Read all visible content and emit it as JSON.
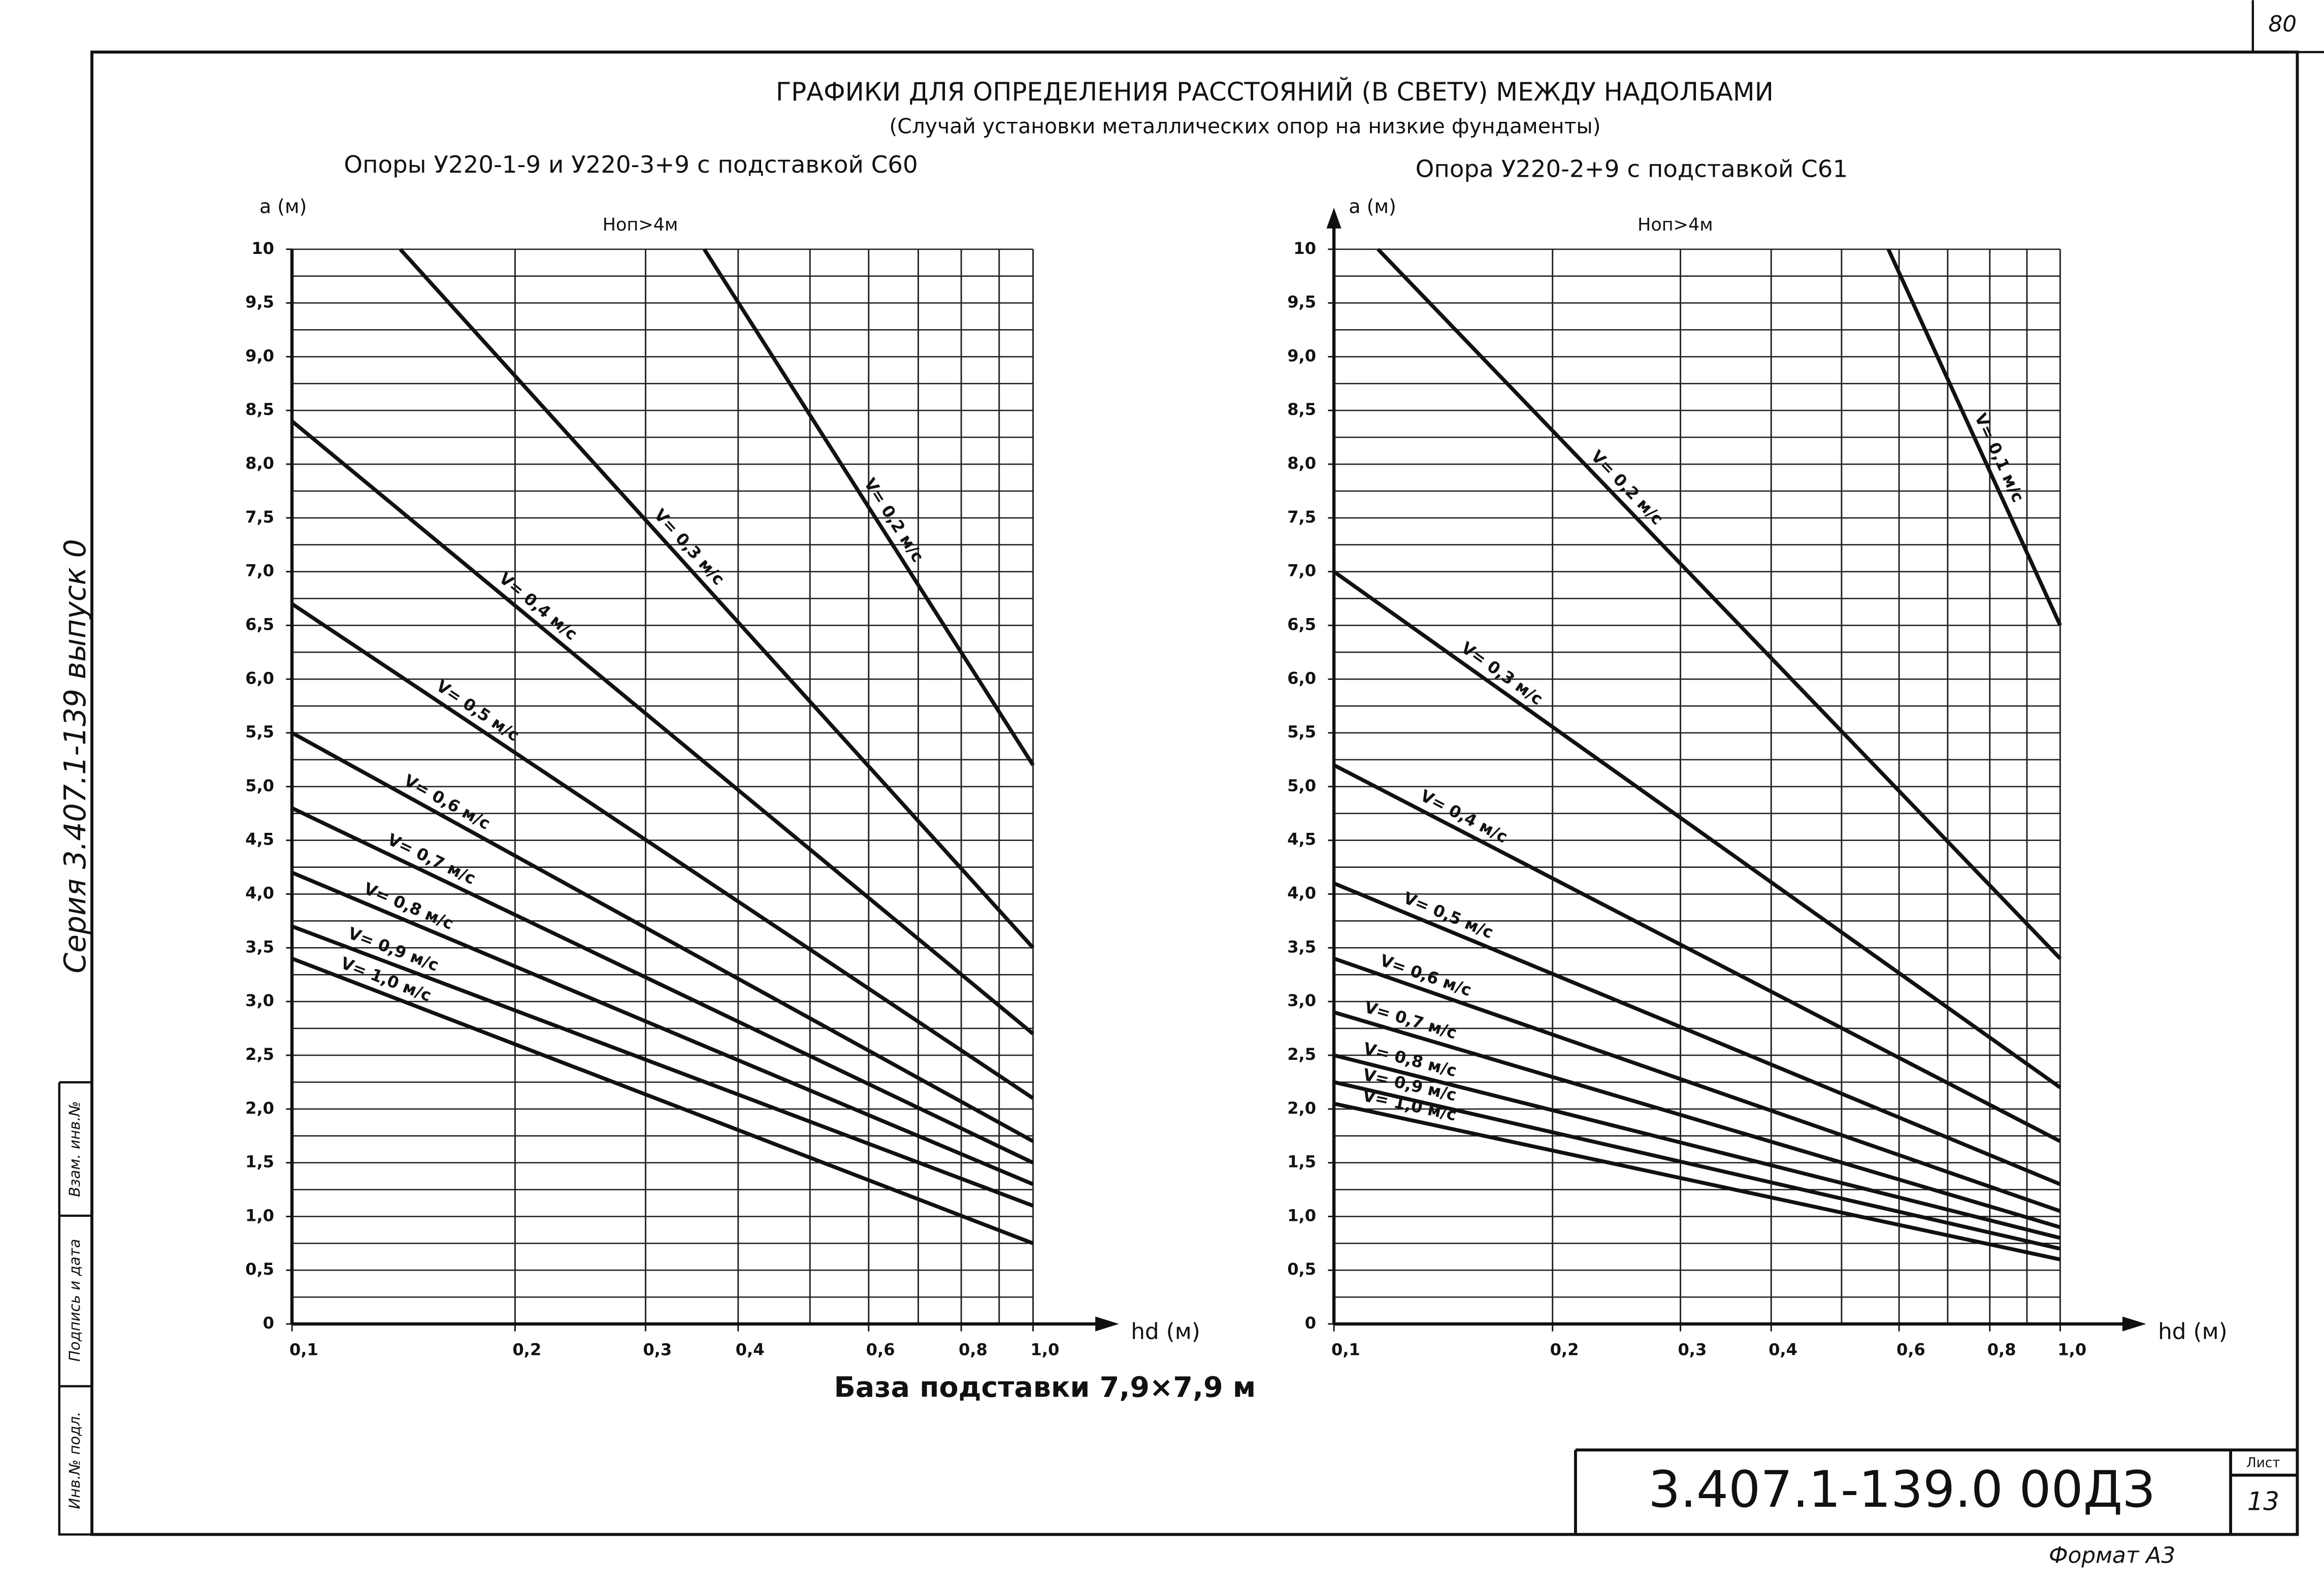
{
  "header": {
    "title": "ГРАФИКИ ДЛЯ ОПРЕДЕЛЕНИЯ РАССТОЯНИЙ (В СВЕТУ) МЕЖДУ НАДОЛБАМИ",
    "subtitle": "(Случай установки металлических опор на низкие фундаменты)"
  },
  "chart_data": [
    {
      "type": "line",
      "title": "Опоры У220-1-9 и У220-3+9 с подставкой С60",
      "annotation": "Hоп>4м",
      "x_label": "hd (м)",
      "y_label": "a (м)",
      "xscale": "log",
      "grid": true,
      "xlim": [
        0.1,
        1.0
      ],
      "ylim": [
        0,
        10
      ],
      "xticks": [
        {
          "value": 0.1,
          "label": "0,1"
        },
        {
          "value": 0.2,
          "label": "0,2"
        },
        {
          "value": 0.3,
          "label": "0,3"
        },
        {
          "value": 0.4,
          "label": "0,4"
        },
        {
          "value": 0.6,
          "label": "0,6"
        },
        {
          "value": 0.8,
          "label": "0,8"
        },
        {
          "value": 1.0,
          "label": "1,0"
        }
      ],
      "yticks": [
        0,
        {
          "value": 0.5,
          "label": "0,5"
        },
        {
          "value": 1,
          "label": "1,0"
        },
        {
          "value": 1.5,
          "label": "1,5"
        },
        {
          "value": 2,
          "label": "2,0"
        },
        {
          "value": 2.5,
          "label": "2,5"
        },
        {
          "value": 3,
          "label": "3,0"
        },
        {
          "value": 3.5,
          "label": "3,5"
        },
        {
          "value": 4,
          "label": "4,0"
        },
        {
          "value": 4.5,
          "label": "4,5"
        },
        {
          "value": 5,
          "label": "5,0"
        },
        {
          "value": 5.5,
          "label": "5,5"
        },
        {
          "value": 6,
          "label": "6,0"
        },
        {
          "value": 6.5,
          "label": "6,5"
        },
        {
          "value": 7,
          "label": "7,0"
        },
        {
          "value": 7.5,
          "label": "7,5"
        },
        {
          "value": 8,
          "label": "8,0"
        },
        {
          "value": 8.5,
          "label": "8,5"
        },
        {
          "value": 9,
          "label": "9,0"
        },
        {
          "value": 9.5,
          "label": "9,5"
        },
        10
      ],
      "xgrid": [
        0.1,
        0.2,
        0.3,
        0.4,
        0.5,
        0.6,
        0.7,
        0.8,
        0.9,
        1.0
      ],
      "ygrid": [
        0,
        0.25,
        0.5,
        0.75,
        1,
        1.25,
        1.5,
        1.75,
        2,
        2.25,
        2.5,
        2.75,
        3,
        3.25,
        3.5,
        3.75,
        4,
        4.25,
        4.5,
        4.75,
        5,
        5.25,
        5.5,
        5.75,
        6,
        6.25,
        6.5,
        6.75,
        7,
        7.25,
        7.5,
        7.75,
        8,
        8.25,
        8.5,
        8.75,
        9,
        9.25,
        9.5,
        9.75,
        10
      ],
      "series": [
        {
          "name": "V= 0,2 м/с",
          "color": "#111111",
          "x": [
            0.36,
            1.0
          ],
          "values": [
            10,
            5.2
          ]
        },
        {
          "name": "V= 0,3 м/с",
          "color": "#111111",
          "x": [
            0.14,
            1.0
          ],
          "values": [
            10,
            3.5
          ]
        },
        {
          "name": "V= 0,4 м/с",
          "color": "#111111",
          "x": [
            0.1,
            1.0
          ],
          "values": [
            8.4,
            2.7
          ]
        },
        {
          "name": "V= 0,5 м/с",
          "color": "#111111",
          "x": [
            0.1,
            1.0
          ],
          "values": [
            6.7,
            2.1
          ]
        },
        {
          "name": "V= 0,6 м/с",
          "color": "#111111",
          "x": [
            0.1,
            1.0
          ],
          "values": [
            5.5,
            1.7
          ]
        },
        {
          "name": "V= 0,7 м/с",
          "color": "#111111",
          "x": [
            0.1,
            1.0
          ],
          "values": [
            4.8,
            1.5
          ]
        },
        {
          "name": "V= 0,8 м/с",
          "color": "#111111",
          "x": [
            0.1,
            1.0
          ],
          "values": [
            4.2,
            1.3
          ]
        },
        {
          "name": "V= 0,9 м/с",
          "color": "#111111",
          "x": [
            0.1,
            1.0
          ],
          "values": [
            3.7,
            1.1
          ]
        },
        {
          "name": "V= 1,0 м/с",
          "color": "#111111",
          "x": [
            0.1,
            1.0
          ],
          "values": [
            3.4,
            0.75
          ]
        }
      ]
    },
    {
      "type": "line",
      "title": "Опора У220-2+9 с подставкой С61",
      "annotation": "Hоп>4м",
      "x_label": "hd (м)",
      "y_label": "a (м)",
      "xscale": "log",
      "grid": true,
      "y_arrow": true,
      "xlim": [
        0.1,
        1.0
      ],
      "ylim": [
        0,
        10
      ],
      "xticks": [
        {
          "value": 0.1,
          "label": "0,1"
        },
        {
          "value": 0.2,
          "label": "0,2"
        },
        {
          "value": 0.3,
          "label": "0,3"
        },
        {
          "value": 0.4,
          "label": "0,4"
        },
        {
          "value": 0.6,
          "label": "0,6"
        },
        {
          "value": 0.8,
          "label": "0,8"
        },
        {
          "value": 1.0,
          "label": "1,0"
        }
      ],
      "yticks": [
        0,
        {
          "value": 0.5,
          "label": "0,5"
        },
        {
          "value": 1,
          "label": "1,0"
        },
        {
          "value": 1.5,
          "label": "1,5"
        },
        {
          "value": 2,
          "label": "2,0"
        },
        {
          "value": 2.5,
          "label": "2,5"
        },
        {
          "value": 3,
          "label": "3,0"
        },
        {
          "value": 3.5,
          "label": "3,5"
        },
        {
          "value": 4,
          "label": "4,0"
        },
        {
          "value": 4.5,
          "label": "4,5"
        },
        {
          "value": 5,
          "label": "5,0"
        },
        {
          "value": 5.5,
          "label": "5,5"
        },
        {
          "value": 6,
          "label": "6,0"
        },
        {
          "value": 6.5,
          "label": "6,5"
        },
        {
          "value": 7,
          "label": "7,0"
        },
        {
          "value": 7.5,
          "label": "7,5"
        },
        {
          "value": 8,
          "label": "8,0"
        },
        {
          "value": 8.5,
          "label": "8,5"
        },
        {
          "value": 9,
          "label": "9,0"
        },
        {
          "value": 9.5,
          "label": "9,5"
        },
        10
      ],
      "xgrid": [
        0.1,
        0.2,
        0.3,
        0.4,
        0.5,
        0.6,
        0.7,
        0.8,
        0.9,
        1.0
      ],
      "ygrid": [
        0,
        0.25,
        0.5,
        0.75,
        1,
        1.25,
        1.5,
        1.75,
        2,
        2.25,
        2.5,
        2.75,
        3,
        3.25,
        3.5,
        3.75,
        4,
        4.25,
        4.5,
        4.75,
        5,
        5.25,
        5.5,
        5.75,
        6,
        6.25,
        6.5,
        6.75,
        7,
        7.25,
        7.5,
        7.75,
        8,
        8.25,
        8.5,
        8.75,
        9,
        9.25,
        9.5,
        9.75,
        10
      ],
      "series": [
        {
          "name": "V= 0,1 м/с",
          "color": "#111111",
          "x": [
            0.58,
            1.0
          ],
          "values": [
            10,
            6.5
          ]
        },
        {
          "name": "V= 0,2 м/с",
          "color": "#111111",
          "x": [
            0.115,
            1.0
          ],
          "values": [
            10,
            3.4
          ]
        },
        {
          "name": "V= 0,3 м/с",
          "color": "#111111",
          "x": [
            0.1,
            1.0
          ],
          "values": [
            7.0,
            2.2
          ]
        },
        {
          "name": "V= 0,4 м/с",
          "color": "#111111",
          "x": [
            0.1,
            1.0
          ],
          "values": [
            5.2,
            1.7
          ]
        },
        {
          "name": "V= 0,5 м/с",
          "color": "#111111",
          "x": [
            0.1,
            1.0
          ],
          "values": [
            4.1,
            1.3
          ]
        },
        {
          "name": "V= 0,6 м/с",
          "color": "#111111",
          "x": [
            0.1,
            1.0
          ],
          "values": [
            3.4,
            1.05
          ]
        },
        {
          "name": "V= 0,7 м/с",
          "color": "#111111",
          "x": [
            0.1,
            1.0
          ],
          "values": [
            2.9,
            0.9
          ]
        },
        {
          "name": "V= 0,8 м/с",
          "color": "#111111",
          "x": [
            0.1,
            1.0
          ],
          "values": [
            2.5,
            0.8
          ]
        },
        {
          "name": "V= 0,9 м/с",
          "color": "#111111",
          "x": [
            0.1,
            1.0
          ],
          "values": [
            2.25,
            0.7
          ]
        },
        {
          "name": "V= 1,0 м/с",
          "color": "#111111",
          "x": [
            0.1,
            1.0
          ],
          "values": [
            2.05,
            0.6
          ]
        }
      ]
    }
  ],
  "document": {
    "base_caption": "База подставки 7,9×7,9 м",
    "series_note": "Серия 3.407.1-139 выпуск 0",
    "designation": "3.407.1-139.0 00ДЗ",
    "sheet_label": "Лист",
    "sheet_number": "13",
    "format": "Формат А3",
    "page_number": "80",
    "stamp_replace": "Взам. инв.№",
    "stamp_sign": "Подпись и дата",
    "stamp_inv": "Инв.№ подл."
  }
}
